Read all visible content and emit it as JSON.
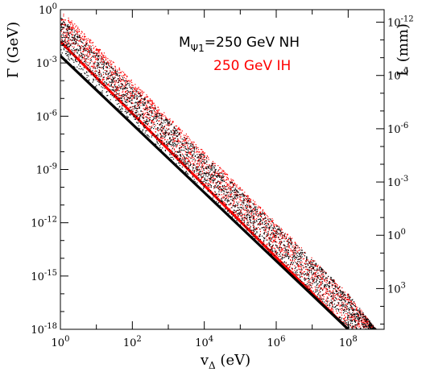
{
  "chart_data": {
    "type": "scatter",
    "xlabel": "v_Δ (eV)",
    "ylabel": "Γ (GeV)",
    "y2label": "L (mm)",
    "x_scale": "log",
    "y_scale": "log",
    "xlim": [
      1,
      1000000000.0
    ],
    "ylim": [
      1e-18,
      1
    ],
    "x_ticks": [
      "10^0",
      "10^2",
      "10^4",
      "10^6",
      "10^8"
    ],
    "y_ticks": [
      "10^0",
      "10^-3",
      "10^-6",
      "10^-9",
      "10^-12",
      "10^-15",
      "10^-18"
    ],
    "y2_ticks": [
      "10^-12",
      "10^-9",
      "10^-6",
      "10^-3",
      "10^0",
      "10^3"
    ],
    "legend": {
      "nh_label": "M_Ψ1=250 GeV NH",
      "ih_label": "250 GeV IH",
      "placement": "top-right"
    },
    "series": [
      {
        "name": "250 GeV NH",
        "color": "#000000",
        "lower_edge": [
          [
            1,
            0.0025
          ],
          [
            100000000.0,
            1e-18
          ]
        ],
        "band_upper_edge": [
          [
            1,
            0.4
          ],
          [
            100000000.0,
            1e-16
          ],
          [
            600000000.0,
            1e-18
          ]
        ]
      },
      {
        "name": "250 GeV IH",
        "color": "#ff0000",
        "lower_edge": [
          [
            1,
            0.016
          ],
          [
            100000000.0,
            1e-18
          ]
        ],
        "band_upper_edge": [
          [
            1,
            1
          ],
          [
            100000000.0,
            1e-16
          ],
          [
            600000000.0,
            1e-18
          ]
        ]
      }
    ],
    "grid": false
  }
}
